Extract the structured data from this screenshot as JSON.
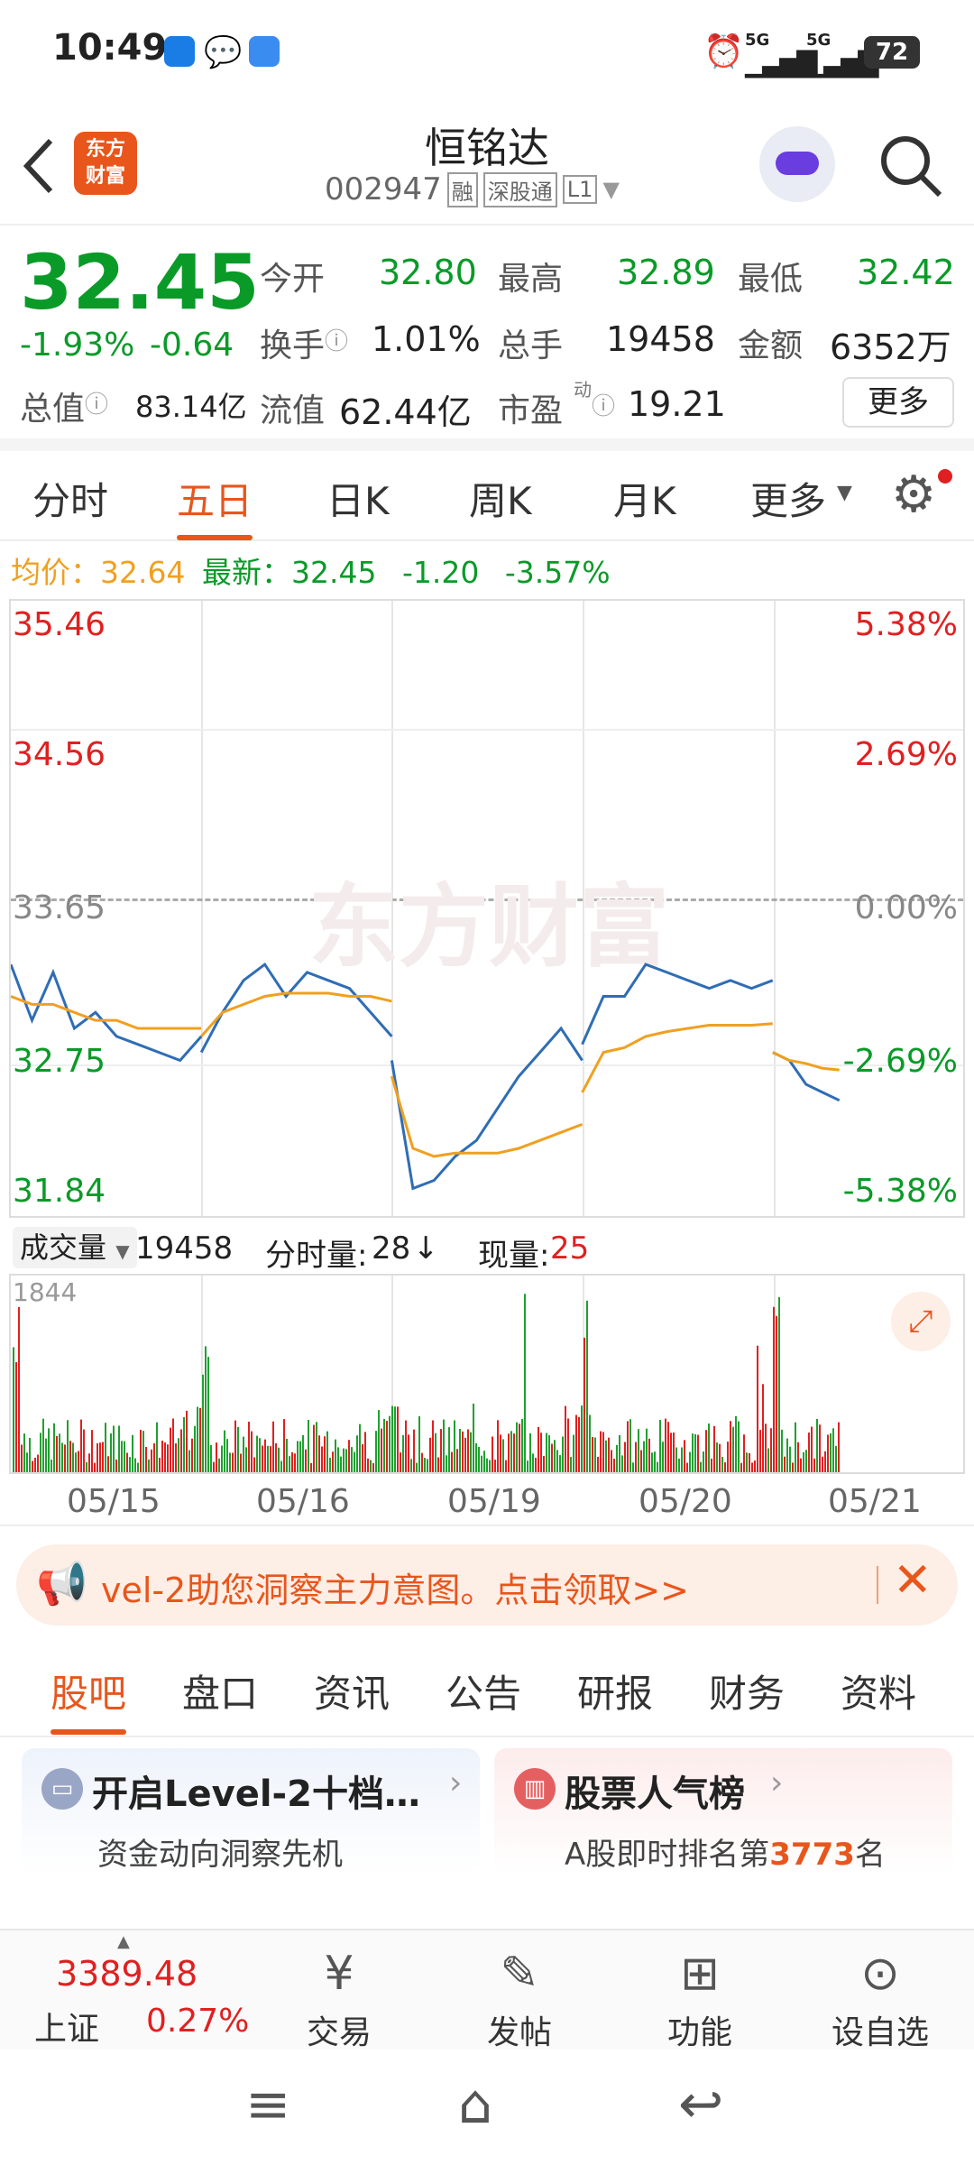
{
  "status": {
    "time": "10:49",
    "battery": "72",
    "signal1": "5G",
    "signal2": "5G"
  },
  "header": {
    "title": "恒铭达",
    "code": "002947",
    "tags": [
      "融",
      "深股通",
      "L1"
    ],
    "logo_line1": "东方",
    "logo_line2": "财富"
  },
  "quote": {
    "price": "32.45",
    "pct": "-1.93%",
    "chg": "-0.64",
    "open_label": "今开",
    "open": "32.80",
    "high_label": "最高",
    "high": "32.89",
    "low_label": "最低",
    "low": "32.42",
    "turnover_label": "换手",
    "turnover": "1.01%",
    "volume_label": "总手",
    "volume": "19458",
    "amount_label": "金额",
    "amount": "6352万",
    "mktcap_label": "总值",
    "mktcap": "83.14亿",
    "float_label": "流值",
    "float": "62.44亿",
    "pe_label": "市盈",
    "pe_sup": "动",
    "pe": "19.21",
    "more": "更多"
  },
  "tabs": [
    "分时",
    "五日",
    "日K",
    "周K",
    "月K",
    "更多"
  ],
  "active_tab": 1,
  "info": {
    "avg_label": "均价：",
    "avg": "32.64",
    "latest_label": "最新：",
    "latest": "32.45",
    "chg": "-1.20",
    "pct": "-3.57%"
  },
  "chart_data": {
    "type": "line",
    "title": "",
    "x": [
      "05/15",
      "05/16",
      "05/19",
      "05/20",
      "05/21"
    ],
    "y_ticks": [
      "35.46",
      "34.56",
      "33.65",
      "32.75",
      "31.84"
    ],
    "pct_ticks": [
      "5.38%",
      "2.69%",
      "0.00%",
      "-2.69%",
      "-5.38%"
    ],
    "ylim": [
      31.84,
      35.46
    ],
    "prev_close": 33.65,
    "series": [
      {
        "name": "",
        "color": "#2f6db5",
        "days": [
          [
            33.3,
            32.95,
            33.25,
            32.9,
            33.0,
            32.85,
            32.8,
            32.75,
            32.7,
            32.85
          ],
          [
            32.75,
            33.0,
            33.2,
            33.3,
            33.1,
            33.25,
            33.2,
            33.15,
            33.0,
            32.85
          ],
          [
            32.7,
            31.9,
            31.95,
            32.1,
            32.2,
            32.4,
            32.6,
            32.75,
            32.9,
            32.7
          ],
          [
            32.8,
            33.1,
            33.1,
            33.3,
            33.25,
            33.2,
            33.15,
            33.2,
            33.15,
            33.2
          ],
          [
            32.75,
            32.7,
            32.55,
            32.5,
            32.45
          ]
        ]
      },
      {
        "name": "",
        "color": "#f0a020",
        "days": [
          [
            33.1,
            33.05,
            33.05,
            33.0,
            32.95,
            32.95,
            32.9,
            32.9,
            32.9,
            32.9
          ],
          [
            32.85,
            33.0,
            33.05,
            33.1,
            33.12,
            33.12,
            33.12,
            33.1,
            33.1,
            33.07
          ],
          [
            32.6,
            32.15,
            32.1,
            32.12,
            32.12,
            32.12,
            32.15,
            32.2,
            32.25,
            32.3
          ],
          [
            32.5,
            32.75,
            32.78,
            32.85,
            32.88,
            32.9,
            32.92,
            32.92,
            32.92,
            32.93
          ],
          [
            32.75,
            32.7,
            32.68,
            32.65,
            32.64
          ]
        ]
      }
    ],
    "volume": {
      "max_label": "1844",
      "label": "成交量",
      "total": "19458",
      "minute_label": "分时量:",
      "minute": "28",
      "arrow": "↓",
      "current_label": "现量:",
      "current": "25"
    }
  },
  "watermark": "东方财富",
  "banner": {
    "text": "vel-2助您洞察主力意图。点击领取>>"
  },
  "subtabs": [
    "股吧",
    "盘口",
    "资讯",
    "公告",
    "研报",
    "财务",
    "资料"
  ],
  "active_subtab": 0,
  "cards": [
    {
      "title": "开启Level-2十档…",
      "sub": "资金动向洞察先机"
    },
    {
      "title": "股票人气榜",
      "sub_prefix": "A股即时排名第",
      "rank": "3773",
      "sub_suffix": "名"
    }
  ],
  "bottomnav": {
    "index_value": "3389.48",
    "index_name": "上证",
    "index_pct": "0.27%",
    "trade": "交易",
    "post": "发帖",
    "func": "功能",
    "watch": "设自选"
  }
}
